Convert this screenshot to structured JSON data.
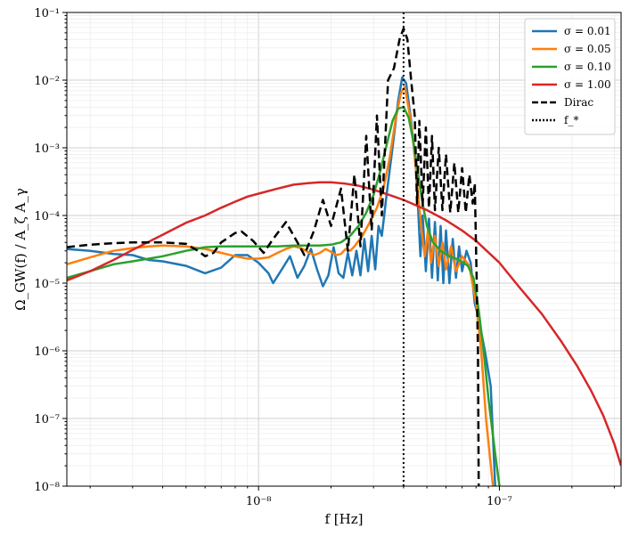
{
  "chart_data": {
    "type": "line",
    "xscale": "log",
    "yscale": "log",
    "xlim": [
      1.6e-09,
      3.2e-07
    ],
    "ylim": [
      1e-08,
      0.1
    ],
    "grid": "major+minor",
    "legend_position": "top-right",
    "xlabel": "f [Hz]",
    "ylabel": "Ω_GW(f) / A_ζ A_γ",
    "x_ticks": [
      {
        "value": 1e-08,
        "label": "10⁻⁸"
      },
      {
        "value": 1e-07,
        "label": "10⁻⁷"
      }
    ],
    "y_ticks": [
      {
        "value": 1e-08,
        "label": "10⁻⁸"
      },
      {
        "value": 1e-07,
        "label": "10⁻⁷"
      },
      {
        "value": 1e-06,
        "label": "10⁻⁶"
      },
      {
        "value": 1e-05,
        "label": "10⁻⁵"
      },
      {
        "value": 0.0001,
        "label": "10⁻⁴"
      },
      {
        "value": 0.001,
        "label": "10⁻³"
      },
      {
        "value": 0.01,
        "label": "10⁻²"
      },
      {
        "value": 0.1,
        "label": "10⁻¹"
      }
    ],
    "vline": {
      "x": 4e-08,
      "name": "f_*",
      "color": "#000000",
      "style": "dotted"
    },
    "series": [
      {
        "name": "σ = 0.01",
        "color": "#1f77b4",
        "style": "solid",
        "points": [
          [
            1.6e-09,
            3.2e-05
          ],
          [
            2e-09,
            3e-05
          ],
          [
            2.5e-09,
            2.7e-05
          ],
          [
            3e-09,
            2.6e-05
          ],
          [
            3.5e-09,
            2.2e-05
          ],
          [
            4e-09,
            2.1e-05
          ],
          [
            5e-09,
            1.8e-05
          ],
          [
            6e-09,
            1.4e-05
          ],
          [
            7e-09,
            1.7e-05
          ],
          [
            8e-09,
            2.6e-05
          ],
          [
            9e-09,
            2.6e-05
          ],
          [
            1e-08,
            2e-05
          ],
          [
            1.1e-08,
            1.4e-05
          ],
          [
            1.15e-08,
            1e-05
          ],
          [
            1.25e-08,
            1.6e-05
          ],
          [
            1.35e-08,
            2.5e-05
          ],
          [
            1.45e-08,
            1.2e-05
          ],
          [
            1.55e-08,
            1.8e-05
          ],
          [
            1.65e-08,
            3.2e-05
          ],
          [
            1.75e-08,
            1.6e-05
          ],
          [
            1.85e-08,
            9e-06
          ],
          [
            1.95e-08,
            1.3e-05
          ],
          [
            2.05e-08,
            3.4e-05
          ],
          [
            2.15e-08,
            1.4e-05
          ],
          [
            2.25e-08,
            1.2e-05
          ],
          [
            2.35e-08,
            2.8e-05
          ],
          [
            2.45e-08,
            1.3e-05
          ],
          [
            2.55e-08,
            3e-05
          ],
          [
            2.65e-08,
            1.3e-05
          ],
          [
            2.75e-08,
            4.5e-05
          ],
          [
            2.85e-08,
            1.5e-05
          ],
          [
            2.95e-08,
            5e-05
          ],
          [
            3.05e-08,
            1.6e-05
          ],
          [
            3.15e-08,
            7e-05
          ],
          [
            3.25e-08,
            5e-05
          ],
          [
            3.4e-08,
            0.0002
          ],
          [
            3.6e-08,
            0.001
          ],
          [
            3.8e-08,
            0.005
          ],
          [
            3.95e-08,
            0.011
          ],
          [
            4.1e-08,
            0.009
          ],
          [
            4.3e-08,
            0.0025
          ],
          [
            4.5e-08,
            0.0005
          ],
          [
            4.6e-08,
            0.00012
          ],
          [
            4.7e-08,
            2.5e-05
          ],
          [
            4.8e-08,
            0.0001
          ],
          [
            4.95e-08,
            1.5e-05
          ],
          [
            5.1e-08,
            9e-05
          ],
          [
            5.25e-08,
            1.2e-05
          ],
          [
            5.4e-08,
            8e-05
          ],
          [
            5.55e-08,
            1.1e-05
          ],
          [
            5.7e-08,
            7e-05
          ],
          [
            5.85e-08,
            1e-05
          ],
          [
            6e-08,
            6e-05
          ],
          [
            6.2e-08,
            1e-05
          ],
          [
            6.4e-08,
            4.5e-05
          ],
          [
            6.6e-08,
            1.2e-05
          ],
          [
            6.8e-08,
            3.5e-05
          ],
          [
            7e-08,
            1.5e-05
          ],
          [
            7.3e-08,
            3e-05
          ],
          [
            7.6e-08,
            2e-05
          ],
          [
            7.9e-08,
            5e-06
          ],
          [
            8.2e-08,
            3e-06
          ],
          [
            8.7e-08,
            1e-06
          ],
          [
            9.2e-08,
            3e-07
          ],
          [
            9.6e-08,
            1e-08
          ]
        ]
      },
      {
        "name": "σ = 0.05",
        "color": "#ff7f0e",
        "style": "solid",
        "points": [
          [
            1.6e-09,
            1.9e-05
          ],
          [
            2e-09,
            2.4e-05
          ],
          [
            2.5e-09,
            3e-05
          ],
          [
            3e-09,
            3.3e-05
          ],
          [
            3.5e-09,
            3.5e-05
          ],
          [
            4e-09,
            3.6e-05
          ],
          [
            5e-09,
            3.5e-05
          ],
          [
            6e-09,
            3.2e-05
          ],
          [
            7e-09,
            2.8e-05
          ],
          [
            8e-09,
            2.5e-05
          ],
          [
            9e-09,
            2.3e-05
          ],
          [
            1e-08,
            2.3e-05
          ],
          [
            1.1e-08,
            2.4e-05
          ],
          [
            1.2e-08,
            2.8e-05
          ],
          [
            1.3e-08,
            3.2e-05
          ],
          [
            1.4e-08,
            3.5e-05
          ],
          [
            1.5e-08,
            3.3e-05
          ],
          [
            1.6e-08,
            2.9e-05
          ],
          [
            1.7e-08,
            2.6e-05
          ],
          [
            1.8e-08,
            2.8e-05
          ],
          [
            1.9e-08,
            3.2e-05
          ],
          [
            2e-08,
            2.9e-05
          ],
          [
            2.1e-08,
            2.6e-05
          ],
          [
            2.2e-08,
            2.7e-05
          ],
          [
            2.3e-08,
            3.2e-05
          ],
          [
            2.4e-08,
            3e-05
          ],
          [
            2.5e-08,
            3.5e-05
          ],
          [
            2.7e-08,
            5e-05
          ],
          [
            2.9e-08,
            8e-05
          ],
          [
            3.1e-08,
            0.00013
          ],
          [
            3.3e-08,
            0.00025
          ],
          [
            3.5e-08,
            0.0007
          ],
          [
            3.7e-08,
            0.0025
          ],
          [
            3.9e-08,
            0.0065
          ],
          [
            4.05e-08,
            0.008
          ],
          [
            4.25e-08,
            0.003
          ],
          [
            4.45e-08,
            0.0008
          ],
          [
            4.6e-08,
            0.0002
          ],
          [
            4.75e-08,
            6e-05
          ],
          [
            4.9e-08,
            2.5e-05
          ],
          [
            5.05e-08,
            6e-05
          ],
          [
            5.2e-08,
            2e-05
          ],
          [
            5.4e-08,
            5e-05
          ],
          [
            5.6e-08,
            1.8e-05
          ],
          [
            5.8e-08,
            4e-05
          ],
          [
            6e-08,
            1.6e-05
          ],
          [
            6.3e-08,
            3.5e-05
          ],
          [
            6.6e-08,
            1.5e-05
          ],
          [
            7e-08,
            2.5e-05
          ],
          [
            7.5e-08,
            1.8e-05
          ],
          [
            8e-08,
            5e-06
          ],
          [
            8.4e-08,
            1e-06
          ],
          [
            8.8e-08,
            1e-07
          ],
          [
            9.4e-08,
            1e-08
          ]
        ]
      },
      {
        "name": "σ = 0.10",
        "color": "#2ca02c",
        "style": "solid",
        "points": [
          [
            1.6e-09,
            1.2e-05
          ],
          [
            2e-09,
            1.5e-05
          ],
          [
            2.5e-09,
            1.9e-05
          ],
          [
            3e-09,
            2.1e-05
          ],
          [
            3.5e-09,
            2.3e-05
          ],
          [
            4e-09,
            2.5e-05
          ],
          [
            5e-09,
            3e-05
          ],
          [
            6e-09,
            3.4e-05
          ],
          [
            7e-09,
            3.5e-05
          ],
          [
            8e-09,
            3.5e-05
          ],
          [
            9e-09,
            3.5e-05
          ],
          [
            1e-08,
            3.5e-05
          ],
          [
            1.2e-08,
            3.5e-05
          ],
          [
            1.4e-08,
            3.6e-05
          ],
          [
            1.6e-08,
            3.6e-05
          ],
          [
            1.8e-08,
            3.6e-05
          ],
          [
            2e-08,
            3.7e-05
          ],
          [
            2.2e-08,
            4e-05
          ],
          [
            2.4e-08,
            5e-05
          ],
          [
            2.6e-08,
            7e-05
          ],
          [
            2.8e-08,
            0.00011
          ],
          [
            3e-08,
            0.0002
          ],
          [
            3.2e-08,
            0.00045
          ],
          [
            3.4e-08,
            0.0011
          ],
          [
            3.6e-08,
            0.0025
          ],
          [
            3.8e-08,
            0.0038
          ],
          [
            4e-08,
            0.004
          ],
          [
            4.2e-08,
            0.0028
          ],
          [
            4.4e-08,
            0.0012
          ],
          [
            4.6e-08,
            0.0004
          ],
          [
            4.8e-08,
            0.00015
          ],
          [
            5e-08,
            7e-05
          ],
          [
            5.3e-08,
            4e-05
          ],
          [
            5.7e-08,
            3e-05
          ],
          [
            6.2e-08,
            2.5e-05
          ],
          [
            6.8e-08,
            2.2e-05
          ],
          [
            7.4e-08,
            1.8e-05
          ],
          [
            7.8e-08,
            1.2e-05
          ],
          [
            8.2e-08,
            4e-06
          ],
          [
            8.6e-08,
            1e-06
          ],
          [
            9e-08,
            2e-07
          ],
          [
            9.6e-08,
            3e-08
          ],
          [
            1e-07,
            1e-08
          ]
        ]
      },
      {
        "name": "σ = 1.00",
        "color": "#d62728",
        "style": "solid",
        "points": [
          [
            1.6e-09,
            1.1e-05
          ],
          [
            2e-09,
            1.5e-05
          ],
          [
            2.5e-09,
            2.2e-05
          ],
          [
            3e-09,
            3.1e-05
          ],
          [
            4e-09,
            5.2e-05
          ],
          [
            5e-09,
            7.8e-05
          ],
          [
            6e-09,
            0.0001
          ],
          [
            7e-09,
            0.00013
          ],
          [
            8e-09,
            0.00016
          ],
          [
            9e-09,
            0.00019
          ],
          [
            1e-08,
            0.00021
          ],
          [
            1.2e-08,
            0.00025
          ],
          [
            1.4e-08,
            0.000285
          ],
          [
            1.6e-08,
            0.0003
          ],
          [
            1.8e-08,
            0.00031
          ],
          [
            2e-08,
            0.00031
          ],
          [
            2.3e-08,
            0.000295
          ],
          [
            2.6e-08,
            0.000275
          ],
          [
            3e-08,
            0.00024
          ],
          [
            3.5e-08,
            0.0002
          ],
          [
            4e-08,
            0.00017
          ],
          [
            5e-08,
            0.00012
          ],
          [
            6e-08,
            8.5e-05
          ],
          [
            7e-08,
            6e-05
          ],
          [
            8e-08,
            4.2e-05
          ],
          [
            1e-07,
            2e-05
          ],
          [
            1.2e-07,
            9e-06
          ],
          [
            1.5e-07,
            3.5e-06
          ],
          [
            1.8e-07,
            1.4e-06
          ],
          [
            2.1e-07,
            6e-07
          ],
          [
            2.4e-07,
            2.6e-07
          ],
          [
            2.7e-07,
            1.1e-07
          ],
          [
            3e-07,
            4.2e-08
          ],
          [
            3.2e-07,
            2e-08
          ]
        ]
      },
      {
        "name": "Dirac",
        "color": "#000000",
        "style": "dashed",
        "points": [
          [
            1.6e-09,
            3.4e-05
          ],
          [
            2e-09,
            3.7e-05
          ],
          [
            2.5e-09,
            3.9e-05
          ],
          [
            3e-09,
            4e-05
          ],
          [
            4e-09,
            4e-05
          ],
          [
            5e-09,
            3.8e-05
          ],
          [
            5.6e-09,
            3e-05
          ],
          [
            6e-09,
            2.5e-05
          ],
          [
            6.5e-09,
            2.8e-05
          ],
          [
            7e-09,
            4e-05
          ],
          [
            8e-09,
            5.5e-05
          ],
          [
            8.5e-09,
            5.8e-05
          ],
          [
            9.5e-09,
            4.2e-05
          ],
          [
            1.05e-08,
            2.8e-05
          ],
          [
            1.15e-08,
            4.5e-05
          ],
          [
            1.3e-08,
            8e-05
          ],
          [
            1.45e-08,
            4e-05
          ],
          [
            1.55e-08,
            2.6e-05
          ],
          [
            1.7e-08,
            6e-05
          ],
          [
            1.85e-08,
            0.00017
          ],
          [
            2e-08,
            7e-05
          ],
          [
            2.2e-08,
            0.00025
          ],
          [
            2.35e-08,
            3e-05
          ],
          [
            2.5e-08,
            0.0004
          ],
          [
            2.65e-08,
            3.5e-05
          ],
          [
            2.8e-08,
            0.0015
          ],
          [
            2.95e-08,
            6e-05
          ],
          [
            3.1e-08,
            0.003
          ],
          [
            3.25e-08,
            0.0001
          ],
          [
            3.45e-08,
            0.01
          ],
          [
            3.65e-08,
            0.015
          ],
          [
            3.85e-08,
            0.04
          ],
          [
            4e-08,
            0.058
          ],
          [
            4.15e-08,
            0.04
          ],
          [
            4.3e-08,
            0.01
          ],
          [
            4.45e-08,
            0.003
          ],
          [
            4.55e-08,
            0.00015
          ],
          [
            4.65e-08,
            0.0025
          ],
          [
            4.8e-08,
            0.00014
          ],
          [
            4.95e-08,
            0.002
          ],
          [
            5.1e-08,
            0.00013
          ],
          [
            5.25e-08,
            0.0015
          ],
          [
            5.4e-08,
            0.00012
          ],
          [
            5.6e-08,
            0.001
          ],
          [
            5.8e-08,
            0.00012
          ],
          [
            6e-08,
            0.0008
          ],
          [
            6.25e-08,
            0.00011
          ],
          [
            6.5e-08,
            0.0006
          ],
          [
            6.75e-08,
            0.00011
          ],
          [
            7e-08,
            0.0005
          ],
          [
            7.25e-08,
            0.00011
          ],
          [
            7.5e-08,
            0.0004
          ],
          [
            7.75e-08,
            0.00015
          ],
          [
            7.9e-08,
            0.0003
          ],
          [
            8.05e-08,
            1e-05
          ],
          [
            8.15e-08,
            1e-06
          ],
          [
            8.2e-08,
            1e-08
          ]
        ]
      }
    ]
  }
}
